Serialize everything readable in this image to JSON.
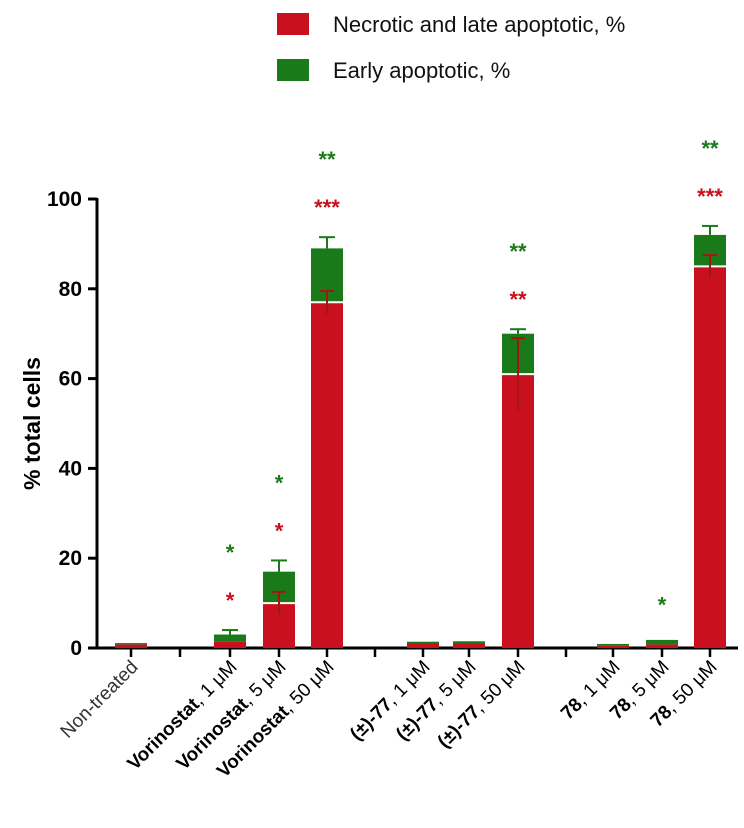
{
  "chart_data": {
    "type": "bar",
    "stacked": true,
    "ylabel": "% total cells",
    "ylim": [
      0,
      100
    ],
    "yticks": [
      0,
      20,
      40,
      60,
      80,
      100
    ],
    "legend": {
      "position": "top",
      "entries": [
        {
          "name": "Necrotic and late apoptotic, %",
          "color": "#c8101e"
        },
        {
          "name": "Early apoptotic, %",
          "color": "#1a7a1a"
        }
      ]
    },
    "categories": [
      {
        "bold": "",
        "rest": "Non-treated",
        "group": 0,
        "plain": true
      },
      {
        "bold": "Vorinostat",
        "rest": ", 1 μM",
        "group": 1
      },
      {
        "bold": "Vorinostat",
        "rest": ", 5 μM",
        "group": 1
      },
      {
        "bold": "Vorinostat",
        "rest": ", 50 μM",
        "group": 1
      },
      {
        "bold": "(±)-77",
        "rest": ", 1 μM",
        "group": 2
      },
      {
        "bold": "(±)-77",
        "rest": ", 5 μM",
        "group": 2
      },
      {
        "bold": "(±)-77",
        "rest": ", 50 μM",
        "group": 2
      },
      {
        "bold": "78",
        "rest": ", 1 μM",
        "group": 3
      },
      {
        "bold": "78",
        "rest": ", 5 μM",
        "group": 3
      },
      {
        "bold": "78",
        "rest": ", 50 μM",
        "group": 3
      }
    ],
    "series": [
      {
        "name": "Necrotic and late apoptotic, %",
        "color": "#c8101e",
        "values": [
          0.8,
          1.5,
          10,
          77,
          1.0,
          1.0,
          61,
          0.6,
          0.8,
          85
        ],
        "errors": [
          0.2,
          0.3,
          2.5,
          2.5,
          0.2,
          0.2,
          8,
          0.2,
          0.2,
          2.5
        ]
      },
      {
        "name": "Early apoptotic, %",
        "color": "#1a7a1a",
        "values": [
          0.3,
          1.5,
          7,
          12,
          0.4,
          0.5,
          9,
          0.3,
          1.0,
          7
        ],
        "errors": [
          0.1,
          1.0,
          2.5,
          2.5,
          0.2,
          0.2,
          1.0,
          0.1,
          0.3,
          2.0
        ]
      }
    ],
    "significance": [
      {
        "index": 1,
        "red": "*",
        "green": "*"
      },
      {
        "index": 2,
        "red": "*",
        "green": "*"
      },
      {
        "index": 3,
        "red": "***",
        "green": "**"
      },
      {
        "index": 6,
        "red": "**",
        "green": "**"
      },
      {
        "index": 8,
        "red": "",
        "green": "*"
      },
      {
        "index": 9,
        "red": "***",
        "green": "**"
      }
    ]
  }
}
